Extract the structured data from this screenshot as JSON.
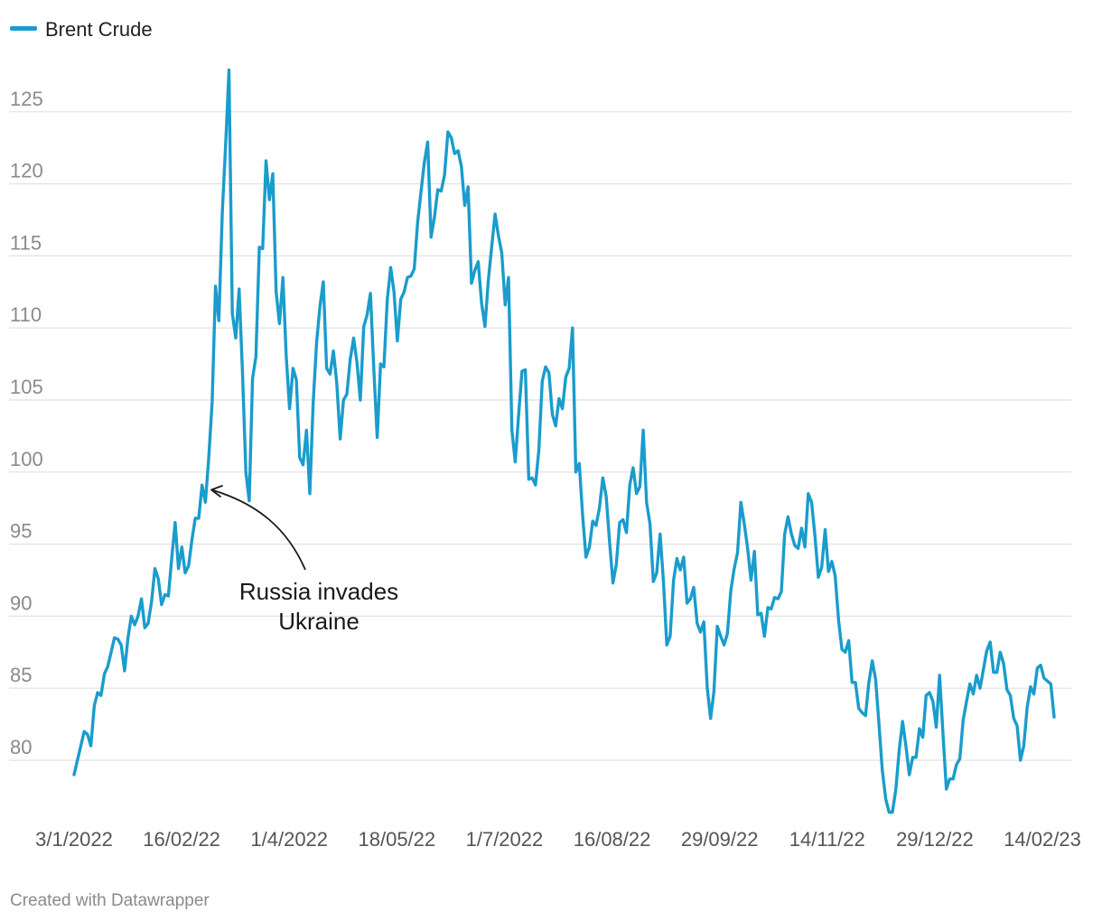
{
  "chart_data": {
    "type": "line",
    "title": "",
    "xlabel": "",
    "ylabel": "",
    "ylim": [
      76,
      128
    ],
    "y_ticks": [
      80,
      85,
      90,
      95,
      100,
      105,
      110,
      115,
      120,
      125
    ],
    "x_tick_labels": [
      "3/1/2022",
      "16/02/22",
      "1/4/2022",
      "18/05/22",
      "1/7/2022",
      "16/08/22",
      "29/09/22",
      "14/11/22",
      "29/12/22",
      "14/02/23"
    ],
    "grid": true,
    "legend": {
      "position": "top-left"
    },
    "series": [
      {
        "name": "Brent Crude",
        "color": "#1a9ccc",
        "values": [
          79.0,
          80.0,
          81.0,
          82.0,
          81.8,
          81.0,
          83.8,
          84.7,
          84.5,
          86.0,
          86.5,
          87.5,
          88.5,
          88.4,
          88.0,
          86.2,
          88.5,
          90.0,
          89.4,
          90.0,
          91.2,
          89.2,
          89.5,
          91.0,
          93.3,
          92.6,
          90.8,
          91.5,
          91.4,
          94.0,
          96.5,
          93.3,
          94.8,
          93.0,
          93.5,
          95.3,
          96.8,
          96.8,
          99.1,
          97.9,
          101.0,
          104.9,
          112.9,
          110.5,
          118.0,
          122.7,
          127.9,
          111.0,
          109.3,
          112.7,
          107.0,
          100.0,
          98.0,
          106.5,
          108.0,
          115.6,
          115.5,
          121.6,
          118.9,
          120.7,
          112.5,
          110.3,
          113.5,
          108.0,
          104.4,
          107.2,
          106.4,
          101.0,
          100.5,
          102.9,
          98.5,
          104.8,
          109.0,
          111.5,
          113.2,
          107.2,
          106.8,
          108.4,
          106.2,
          102.3,
          105.0,
          105.4,
          107.8,
          109.3,
          107.6,
          105.0,
          110.1,
          110.9,
          112.4,
          107.2,
          102.4,
          107.5,
          107.3,
          112.0,
          114.2,
          112.5,
          109.1,
          112.0,
          112.5,
          113.5,
          113.6,
          114.1,
          117.3,
          119.4,
          121.5,
          122.9,
          116.3,
          117.7,
          119.6,
          119.5,
          120.6,
          123.6,
          123.2,
          122.1,
          122.3,
          121.2,
          118.5,
          119.8,
          113.1,
          114.0,
          114.6,
          111.7,
          110.1,
          113.3,
          115.6,
          117.9,
          116.4,
          115.2,
          111.6,
          113.5,
          102.9,
          100.7,
          104.0,
          107.0,
          107.1,
          99.5,
          99.6,
          99.1,
          101.5,
          106.3,
          107.3,
          106.9,
          104.0,
          103.2,
          105.1,
          104.4,
          106.6,
          107.2,
          110.0,
          100.0,
          100.6,
          97.0,
          94.1,
          94.8,
          96.6,
          96.3,
          97.5,
          99.6,
          98.3,
          95.2,
          92.3,
          93.6,
          96.5,
          96.7,
          95.8,
          99.1,
          100.3,
          98.5,
          99.0,
          102.9,
          97.9,
          96.4,
          92.4,
          93.0,
          95.7,
          92.4,
          88.0,
          88.6,
          92.5,
          94.0,
          93.2,
          94.1,
          90.9,
          91.2,
          92.0,
          89.5,
          88.9,
          89.6,
          85.0,
          82.9,
          84.8,
          89.3,
          88.6,
          88.0,
          88.8,
          91.8,
          93.3,
          94.4,
          97.9,
          96.4,
          94.7,
          92.5,
          94.5,
          90.1,
          90.2,
          88.6,
          90.6,
          90.5,
          91.3,
          91.2,
          91.7,
          95.7,
          96.9,
          95.7,
          94.9,
          94.7,
          96.1,
          94.8,
          98.5,
          97.9,
          95.5,
          92.7,
          93.4,
          96.0,
          93.1,
          93.8,
          92.8,
          89.7,
          87.7,
          87.5,
          88.3,
          85.4,
          85.4,
          83.6,
          83.3,
          83.1,
          85.4,
          86.9,
          85.6,
          82.5,
          79.3,
          77.3,
          76.4,
          76.4,
          78.0,
          80.7,
          82.7,
          81.0,
          79.0,
          80.2,
          80.2,
          82.2,
          81.6,
          84.5,
          84.7,
          84.1,
          82.3,
          85.9,
          81.8,
          78.0,
          78.7,
          78.7,
          79.7,
          80.1,
          82.8,
          84.1,
          85.3,
          84.6,
          85.9,
          85.0,
          86.3,
          87.6,
          88.2,
          86.1,
          86.1,
          87.5,
          86.7,
          84.9,
          84.5,
          82.9,
          82.4,
          80.0,
          81.0,
          83.7,
          85.1,
          84.6,
          86.4,
          86.6,
          85.7,
          85.5,
          85.3,
          83.0
        ]
      }
    ],
    "annotation": {
      "lines": [
        "Russia invades",
        "Ukraine"
      ],
      "target_index": 40
    },
    "credit": "Created with Datawrapper"
  }
}
